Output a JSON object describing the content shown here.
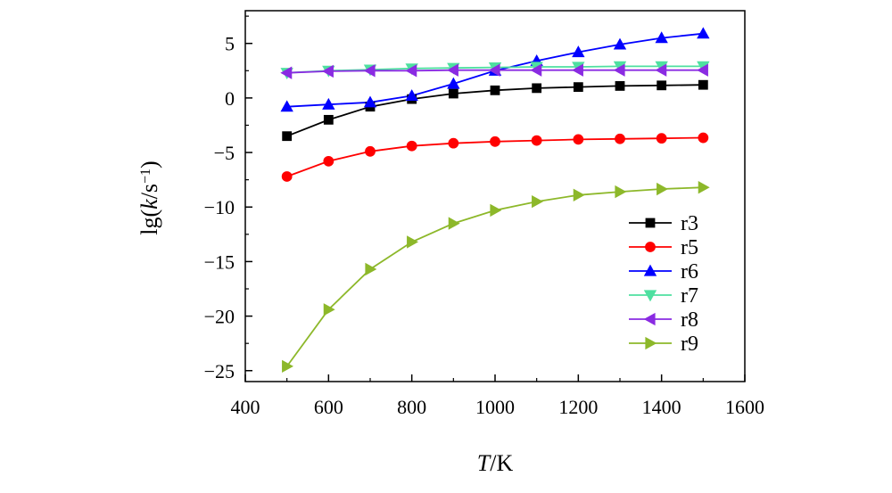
{
  "chart_data": {
    "type": "line",
    "xlabel": {
      "italic": "T",
      "rest": "/K"
    },
    "ylabel": {
      "pre": "lg(",
      "italic": "k",
      "mid": "/s",
      "sup": "−1",
      "post": ")"
    },
    "xlim": [
      400,
      1600
    ],
    "ylim": [
      -26,
      8
    ],
    "x_ticks": [
      400,
      600,
      800,
      1000,
      1200,
      1400,
      1600
    ],
    "x_tick_labels": [
      "400",
      "600",
      "800",
      "1000",
      "1200",
      "1400",
      "1600"
    ],
    "y_ticks": [
      5,
      0,
      -5,
      -10,
      -15,
      -20,
      -25
    ],
    "y_tick_labels": [
      "5",
      "0",
      "−5",
      "−10",
      "−15",
      "−20",
      "−25"
    ],
    "grid": false,
    "legend_position": "lower-right",
    "x": [
      500,
      600,
      700,
      800,
      900,
      1000,
      1100,
      1200,
      1300,
      1400,
      1500
    ],
    "series": [
      {
        "name": "r3",
        "color": "#000000",
        "marker": "square",
        "values": [
          -3.5,
          -2.0,
          -0.8,
          -0.1,
          0.4,
          0.7,
          0.9,
          1.0,
          1.1,
          1.15,
          1.2
        ]
      },
      {
        "name": "r5",
        "color": "#ff0000",
        "marker": "circle",
        "values": [
          -7.2,
          -5.8,
          -4.9,
          -4.4,
          -4.15,
          -4.0,
          -3.9,
          -3.8,
          -3.75,
          -3.7,
          -3.65
        ]
      },
      {
        "name": "r6",
        "color": "#0000ff",
        "marker": "triangle-up",
        "values": [
          -0.8,
          -0.6,
          -0.4,
          0.2,
          1.3,
          2.5,
          3.4,
          4.2,
          4.9,
          5.5,
          5.9
        ]
      },
      {
        "name": "r7",
        "color": "#4ee0a0",
        "marker": "triangle-down",
        "values": [
          2.3,
          2.5,
          2.6,
          2.7,
          2.75,
          2.8,
          2.85,
          2.85,
          2.9,
          2.9,
          2.9
        ]
      },
      {
        "name": "r8",
        "color": "#8a2be2",
        "marker": "triangle-left",
        "values": [
          2.3,
          2.45,
          2.5,
          2.5,
          2.55,
          2.55,
          2.55,
          2.55,
          2.55,
          2.55,
          2.55
        ]
      },
      {
        "name": "r9",
        "color": "#8db82a",
        "marker": "triangle-right",
        "values": [
          -24.6,
          -19.4,
          -15.7,
          -13.2,
          -11.5,
          -10.3,
          -9.5,
          -8.9,
          -8.6,
          -8.35,
          -8.2
        ]
      }
    ]
  }
}
